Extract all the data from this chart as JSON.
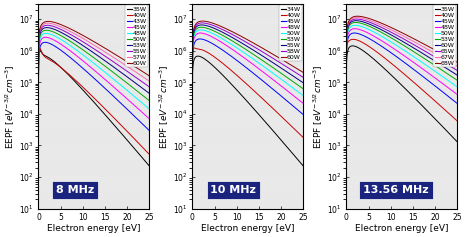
{
  "panel_configs": [
    {
      "freq_label": "8 MHz",
      "labels": [
        "35W",
        "40W",
        "43W",
        "45W",
        "48W",
        "50W",
        "53W",
        "55W",
        "57W",
        "60W"
      ],
      "colors": [
        "black",
        "#CC0000",
        "blue",
        "#FF00FF",
        "cyan",
        "#00AA00",
        "#000080",
        "#9400D3",
        "#FF69B4",
        "#8B0000"
      ],
      "n0s": [
        1000000.0,
        800000.0,
        2500000.0,
        3500000.0,
        4500000.0,
        5500000.0,
        6500000.0,
        7500000.0,
        8500000.0,
        9500000.0
      ],
      "Tes": [
        2.5,
        2.8,
        3.0,
        3.2,
        3.4,
        3.6,
        3.8,
        4.0,
        4.2,
        4.4
      ],
      "bump_idx": [
        0,
        1
      ],
      "bump_n0s": [
        150000.0,
        180000.0
      ],
      "bump_Tes": [
        0.3,
        0.35
      ],
      "bump_E0s": [
        0.0,
        0.0
      ]
    },
    {
      "freq_label": "10 MHz",
      "labels": [
        "34W",
        "40W",
        "45W",
        "48W",
        "50W",
        "53W",
        "55W",
        "58W",
        "60W"
      ],
      "colors": [
        "black",
        "#CC0000",
        "blue",
        "#FF00FF",
        "cyan",
        "#00AA00",
        "#000080",
        "#9400D3",
        "#8B0000"
      ],
      "n0s": [
        1000000.0,
        1500000.0,
        3000000.0,
        4500000.0,
        5500000.0,
        6500000.0,
        7500000.0,
        8500000.0,
        9500000.0
      ],
      "Tes": [
        2.5,
        3.0,
        3.4,
        3.6,
        3.8,
        4.0,
        4.2,
        4.4,
        4.6
      ],
      "bump_idx": [
        1
      ],
      "bump_n0s": [
        120000.0
      ],
      "bump_Tes": [
        0.3
      ],
      "bump_E0s": [
        0.0
      ]
    },
    {
      "freq_label": "13.56 MHz",
      "labels": [
        "35W",
        "40W",
        "45W",
        "48W",
        "50W",
        "53W",
        "60W",
        "65W",
        "67W",
        "68W"
      ],
      "colors": [
        "black",
        "#CC0000",
        "blue",
        "#FF00FF",
        "cyan",
        "#00AA00",
        "#000080",
        "#9400D3",
        "#FF69B4",
        "#8B0000"
      ],
      "n0s": [
        2000000.0,
        3000000.0,
        4500000.0,
        6000000.0,
        7500000.0,
        9000000.0,
        10000000.0,
        11000000.0,
        12000000.0,
        13000000.0
      ],
      "Tes": [
        2.8,
        3.2,
        3.6,
        3.8,
        4.0,
        4.2,
        4.4,
        4.6,
        4.8,
        5.0
      ],
      "bump_idx": [
        1
      ],
      "bump_n0s": [
        100000.0
      ],
      "bump_Tes": [
        0.25
      ],
      "bump_E0s": [
        0.0
      ]
    }
  ],
  "xlabel": "Electron energy [eV]",
  "ylabel": "EEPF [$eV^{-3/2}cm^{-3}$]",
  "xlim": [
    0,
    25
  ],
  "ymin": 10.0,
  "ymax": 30000000.0,
  "bg_color": "#ffffff",
  "plot_bg": "#e8e8e8",
  "freq_box_color": "#1a237e",
  "freq_text_color": "white",
  "freq_fontsize": 8,
  "legend_fontsize": 4.5,
  "tick_labelsize": 5.5,
  "label_fontsize": 6.5,
  "linewidth": 0.7
}
